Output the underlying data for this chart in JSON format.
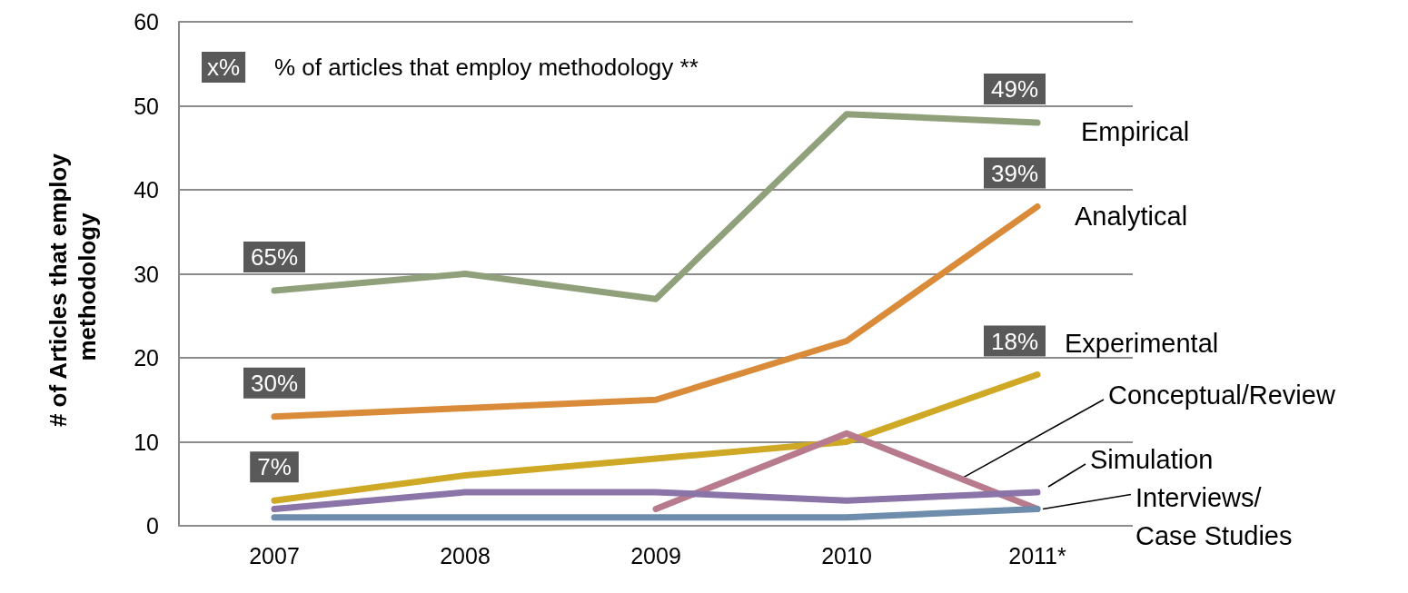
{
  "chart_data": {
    "type": "line",
    "ylabel": "# of Articles that employ methodology",
    "categories": [
      "2007",
      "2008",
      "2009",
      "2010",
      "2011*"
    ],
    "series": [
      {
        "name": "Empirical",
        "color": "#8fa07a",
        "values": [
          28,
          30,
          27,
          49,
          48
        ]
      },
      {
        "name": "Analytical",
        "color": "#d98b3a",
        "values": [
          13,
          14,
          15,
          22,
          38
        ]
      },
      {
        "name": "Experimental",
        "color": "#cfa925",
        "values": [
          3,
          6,
          8,
          10,
          18
        ]
      },
      {
        "name": "Conceptual/Review",
        "color": "#b87b8e",
        "values": [
          null,
          null,
          2,
          11,
          2
        ]
      },
      {
        "name": "Simulation",
        "color": "#8a74a8",
        "values": [
          2,
          4,
          4,
          3,
          4
        ]
      },
      {
        "name": "Interviews/ Case Studies",
        "color": "#6e8cab",
        "values": [
          1,
          1,
          1,
          1,
          2
        ]
      }
    ],
    "annotations": [
      "x%",
      "% of articles that employ methodology **",
      {
        "text": "65%",
        "x": "2007",
        "y": 28
      },
      {
        "text": "30%",
        "x": "2007",
        "y": 13
      },
      {
        "text": "7%",
        "x": "2007",
        "y": 3
      },
      {
        "text": "49%",
        "x": "2011*",
        "y": 48
      },
      {
        "text": "39%",
        "x": "2011*",
        "y": 38
      },
      {
        "text": "18%",
        "x": "2011*",
        "y": 18
      }
    ],
    "ylim": [
      0,
      60
    ],
    "yticks": [
      0,
      10,
      20,
      30,
      40,
      50,
      60
    ],
    "grid": "y",
    "legend": false,
    "marker": "none",
    "line_style": "solid"
  }
}
